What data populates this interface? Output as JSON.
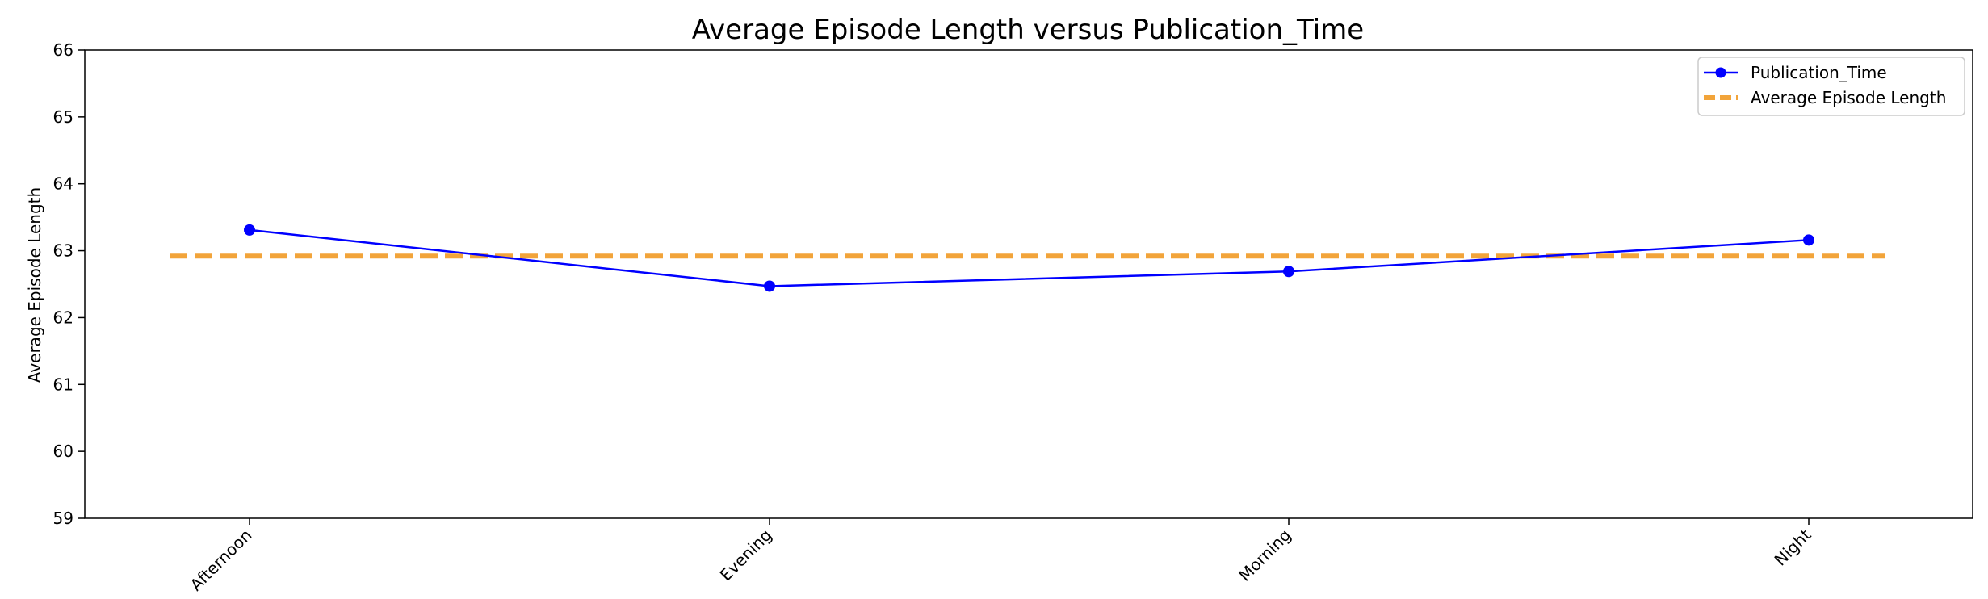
{
  "chart_data": {
    "type": "line",
    "title": "Average Episode Length versus Publication_Time",
    "xlabel": "",
    "ylabel": "Average Episode Length",
    "categories": [
      "Afternoon",
      "Evening",
      "Morning",
      "Night"
    ],
    "series": [
      {
        "name": "Publication_Time",
        "values": [
          63.31,
          62.47,
          62.69,
          63.16
        ],
        "color": "#0000ff",
        "marker": "circle"
      }
    ],
    "reference_line": {
      "name": "Average Episode Length",
      "value": 62.92,
      "color": "#f2a43a",
      "style": "dashed"
    },
    "ylim": [
      59,
      66
    ],
    "yticks": [
      59,
      60,
      61,
      62,
      63,
      64,
      65,
      66
    ],
    "grid": false,
    "legend_position": "top-right"
  }
}
